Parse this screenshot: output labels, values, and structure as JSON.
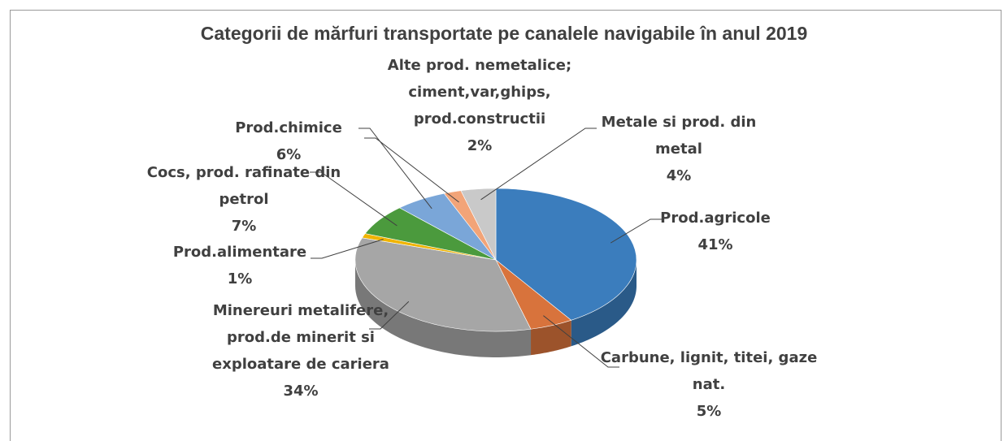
{
  "chart_data": {
    "type": "pie",
    "title": "Categorii de mărfuri transportate pe canalele navigabile în anul 2019",
    "categories": [
      "Prod.agricole",
      "Carbune, lignit, titei, gaze nat.",
      "Minereuri metalifere, prod.de minerit si exploatare de cariera",
      "Prod.alimentare",
      "Cocs, prod. rafinate din petrol",
      "Prod.chimice",
      "Alte prod. nemetalice; ciment,var,ghips, prod.constructii",
      "Metale si prod. din metal"
    ],
    "values": [
      41,
      5,
      34,
      1,
      7,
      6,
      2,
      4
    ],
    "value_labels": [
      "41%",
      "5%",
      "34%",
      "1%",
      "7%",
      "6%",
      "2%",
      "4%"
    ],
    "colors": [
      "#3b7dbd",
      "#d8733c",
      "#a6a6a6",
      "#f0b400",
      "#4b9a3d",
      "#7aa6d8",
      "#f2a478",
      "#c9c9c9"
    ]
  }
}
